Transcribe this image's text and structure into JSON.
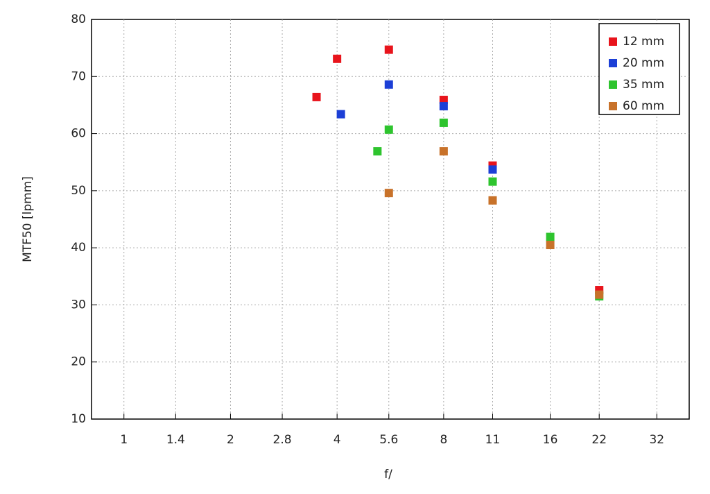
{
  "chart_data": {
    "type": "scatter",
    "xlabel": "f/",
    "ylabel": "MTF50 [lpmm]",
    "xscale": "log",
    "grid": true,
    "legend": "upper right",
    "xlim": [
      0.81,
      39.5
    ],
    "ylim": [
      10,
      80
    ],
    "xticks": [
      1,
      1.4,
      2,
      2.8,
      4,
      5.6,
      8,
      11,
      16,
      22,
      32
    ],
    "yticks": [
      10,
      20,
      30,
      40,
      50,
      60,
      70,
      80
    ],
    "series": [
      {
        "name": "12 mm",
        "color": "#e8141c",
        "x": [
          3.5,
          4,
          5.6,
          8,
          11,
          22
        ],
        "values": [
          66.4,
          73.1,
          74.7,
          65.9,
          54.4,
          32.6
        ]
      },
      {
        "name": "20 mm",
        "color": "#1c3fd6",
        "x": [
          4.1,
          5.6,
          8,
          11
        ],
        "values": [
          63.4,
          68.6,
          64.8,
          53.7
        ]
      },
      {
        "name": "35 mm",
        "color": "#2ec42e",
        "x": [
          5.2,
          5.6,
          8,
          11,
          16,
          22
        ],
        "values": [
          56.9,
          60.7,
          61.9,
          51.6,
          41.9,
          31.5
        ]
      },
      {
        "name": "60 mm",
        "color": "#c8722a",
        "x": [
          5.6,
          8,
          11,
          16,
          22
        ],
        "values": [
          49.6,
          56.9,
          48.3,
          40.5,
          31.8
        ]
      }
    ]
  }
}
